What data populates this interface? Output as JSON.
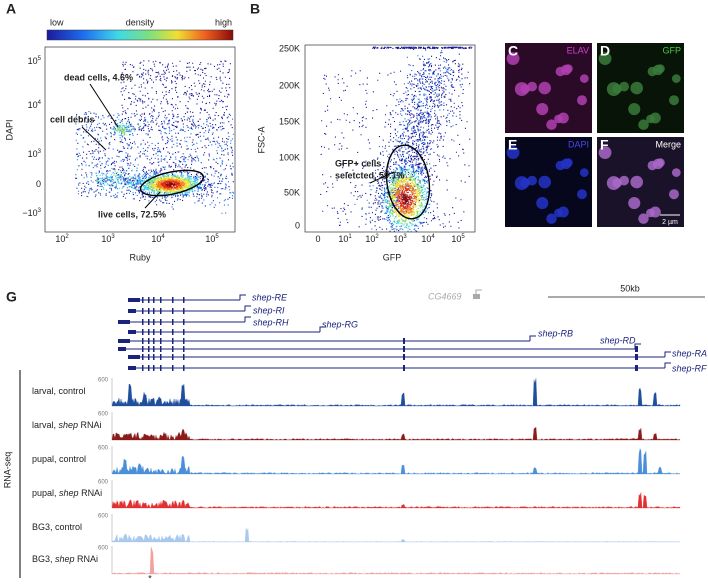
{
  "panel_a": {
    "letter": "A",
    "colorbar": {
      "low": "low",
      "mid": "density",
      "high": "high"
    },
    "y_label": "DAPI",
    "x_label": "Ruby",
    "y_ticks": [
      {
        "base": "10",
        "exp": "5"
      },
      {
        "base": "10",
        "exp": "4"
      },
      {
        "base": "10",
        "exp": "3"
      },
      {
        "base": "0",
        "exp": ""
      },
      {
        "base": "−10",
        "exp": "3"
      }
    ],
    "x_ticks": [
      {
        "base": "10",
        "exp": "2"
      },
      {
        "base": "10",
        "exp": "3"
      },
      {
        "base": "10",
        "exp": "4"
      },
      {
        "base": "10",
        "exp": "5"
      }
    ],
    "annotations": [
      "dead cells, 4.6%",
      "cell debris",
      "live cells, 72.5%"
    ]
  },
  "panel_b": {
    "letter": "B",
    "y_label": "FSC-A",
    "x_label": "GFP",
    "y_ticks": [
      "250K",
      "200K",
      "150K",
      "100K",
      "50K",
      "0"
    ],
    "x_ticks": [
      {
        "base": "0",
        "exp": ""
      },
      {
        "base": "10",
        "exp": "1"
      },
      {
        "base": "10",
        "exp": "2"
      },
      {
        "base": "10",
        "exp": "3"
      },
      {
        "base": "10",
        "exp": "4"
      },
      {
        "base": "10",
        "exp": "5"
      }
    ],
    "annotation": [
      "GFP+ cells",
      "seletcted, 59.1%"
    ]
  },
  "micrographs": [
    {
      "letter": "C",
      "label": "ELAV"
    },
    {
      "letter": "D",
      "label": "GFP"
    },
    {
      "letter": "E",
      "label": "DAPI"
    },
    {
      "letter": "F",
      "label": "Merge",
      "scale_bar": "2 µm"
    }
  ],
  "panel_g": {
    "letter": "G",
    "scale_bar": "50kb",
    "neighbor_gene": "CG4669",
    "isoforms": [
      "shep-RE",
      "shep-RI",
      "shep-RH",
      "shep-RG",
      "shep-RB",
      "shep-RD",
      "shep-RA",
      "shep-RF"
    ],
    "assay": "RNA-seq",
    "tracks": [
      {
        "label": [
          "larval, control"
        ],
        "scale": "600",
        "color": "#1f4e9c"
      },
      {
        "label": [
          "larval, ",
          "shep",
          " RNAi"
        ],
        "scale": "600",
        "color": "#8b1a1a"
      },
      {
        "label": [
          "pupal, control"
        ],
        "scale": "600",
        "color": "#4a8fd8"
      },
      {
        "label": [
          "pupal, ",
          "shep",
          " RNAi"
        ],
        "scale": "600",
        "color": "#e03030"
      },
      {
        "label": [
          "BG3, control"
        ],
        "scale": "600",
        "color": "#a8c8ec"
      },
      {
        "label": [
          "BG3, ",
          "shep",
          " RNAi"
        ],
        "scale": "600",
        "color": "#f2a0a0"
      }
    ],
    "marker": "*"
  }
}
